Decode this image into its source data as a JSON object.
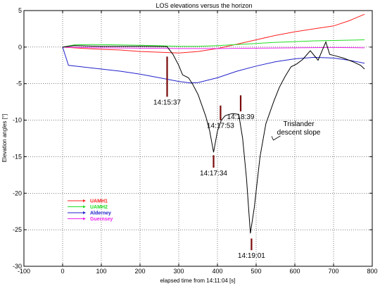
{
  "chart_data": {
    "type": "line",
    "title": "LOS elevations versus the horizon",
    "xlabel": "elapsed time from 14:11:04 [s]",
    "ylabel": "Elevation angles [°]",
    "xlim": [
      -100,
      800
    ],
    "ylim": [
      -30,
      5
    ],
    "xticks": [
      -100,
      0,
      100,
      200,
      300,
      400,
      500,
      600,
      700,
      800
    ],
    "yticks": [
      -30,
      -25,
      -20,
      -15,
      -10,
      -5,
      0,
      5
    ],
    "grid": true,
    "legend_position": "lower-left",
    "series": [
      {
        "name": "UAMH1",
        "color": "#ff2020",
        "points": [
          [
            0,
            0
          ],
          [
            30,
            -0.1
          ],
          [
            60,
            -0.2
          ],
          [
            100,
            -0.3
          ],
          [
            150,
            -0.4
          ],
          [
            200,
            -0.6
          ],
          [
            250,
            -0.7
          ],
          [
            300,
            -0.8
          ],
          [
            350,
            -0.6
          ],
          [
            400,
            -0.2
          ],
          [
            450,
            0.4
          ],
          [
            500,
            1.0
          ],
          [
            550,
            1.6
          ],
          [
            600,
            2.1
          ],
          [
            650,
            2.5
          ],
          [
            700,
            2.9
          ],
          [
            740,
            3.6
          ],
          [
            780,
            4.5
          ]
        ]
      },
      {
        "name": "UAMH2",
        "color": "#22dd22",
        "points": [
          [
            0,
            0
          ],
          [
            30,
            0.3
          ],
          [
            80,
            0.35
          ],
          [
            150,
            0.3
          ],
          [
            200,
            0.25
          ],
          [
            250,
            0.2
          ],
          [
            270,
            0.15
          ],
          [
            300,
            0.1
          ],
          [
            350,
            0.1
          ],
          [
            400,
            0.2
          ],
          [
            450,
            0.35
          ],
          [
            500,
            0.5
          ],
          [
            550,
            0.65
          ],
          [
            600,
            0.75
          ],
          [
            650,
            0.85
          ],
          [
            700,
            0.9
          ],
          [
            780,
            1.0
          ]
        ]
      },
      {
        "name": "Alderney",
        "color": "#2222cc",
        "points": [
          [
            0,
            0
          ],
          [
            15,
            -2.5
          ],
          [
            50,
            -2.7
          ],
          [
            100,
            -3.0
          ],
          [
            150,
            -3.3
          ],
          [
            200,
            -3.7
          ],
          [
            250,
            -4.2
          ],
          [
            300,
            -4.7
          ],
          [
            330,
            -4.9
          ],
          [
            350,
            -4.85
          ],
          [
            400,
            -4.2
          ],
          [
            450,
            -3.3
          ],
          [
            500,
            -2.6
          ],
          [
            550,
            -2.0
          ],
          [
            600,
            -1.6
          ],
          [
            650,
            -1.4
          ],
          [
            700,
            -1.5
          ],
          [
            740,
            -1.8
          ],
          [
            780,
            -2.2
          ]
        ]
      },
      {
        "name": "Guernsey",
        "color": "#ee22ee",
        "points": [
          [
            0,
            0
          ],
          [
            100,
            -0.1
          ],
          [
            200,
            -0.15
          ],
          [
            300,
            -0.2
          ],
          [
            400,
            -0.2
          ],
          [
            500,
            -0.15
          ],
          [
            600,
            -0.1
          ],
          [
            700,
            -0.05
          ],
          [
            780,
            -0.1
          ]
        ]
      },
      {
        "name": "",
        "color": "#000000",
        "points": [
          [
            0,
            0
          ],
          [
            30,
            0.2
          ],
          [
            100,
            0.1
          ],
          [
            150,
            0.1
          ],
          [
            200,
            0.1
          ],
          [
            270,
            0.05
          ],
          [
            285,
            -1.0
          ],
          [
            300,
            -2.5
          ],
          [
            310,
            -3.8
          ],
          [
            325,
            -4.2
          ],
          [
            335,
            -5.0
          ],
          [
            350,
            -6.5
          ],
          [
            360,
            -8.0
          ],
          [
            370,
            -9.5
          ],
          [
            380,
            -11.5
          ],
          [
            390,
            -14.4
          ],
          [
            400,
            -11.5
          ],
          [
            410,
            -10.0
          ],
          [
            420,
            -9.4
          ],
          [
            430,
            -9.2
          ],
          [
            440,
            -9.1
          ],
          [
            455,
            -9.2
          ],
          [
            465,
            -12.5
          ],
          [
            475,
            -18.0
          ],
          [
            485,
            -25.5
          ],
          [
            495,
            -22.0
          ],
          [
            510,
            -15.0
          ],
          [
            525,
            -10.5
          ],
          [
            545,
            -7.5
          ],
          [
            560,
            -5.5
          ],
          [
            575,
            -4.0
          ],
          [
            590,
            -2.7
          ],
          [
            605,
            -2.3
          ],
          [
            620,
            -1.7
          ],
          [
            640,
            -0.5
          ],
          [
            660,
            -1.8
          ],
          [
            680,
            0.7
          ],
          [
            690,
            -1.0
          ],
          [
            705,
            -1.2
          ],
          [
            725,
            -1.5
          ],
          [
            750,
            -2.0
          ],
          [
            770,
            -2.5
          ],
          [
            780,
            -3.0
          ]
        ]
      }
    ],
    "markers": [
      {
        "label": "14:15:37",
        "x": 270,
        "y_top": -1.3,
        "y_bottom": -6.8
      },
      {
        "label": "14:17:53",
        "x": 408,
        "y_top": -8.0,
        "y_bottom": -10.0
      },
      {
        "label": "14:18:39",
        "x": 460,
        "y_top": -6.6,
        "y_bottom": -8.8
      },
      {
        "label": "14:17:34",
        "x": 390,
        "y_top": -14.8,
        "y_bottom": -16.5
      },
      {
        "label": "14:19:01",
        "x": 488,
        "y_top": -26.2,
        "y_bottom": -27.8
      }
    ],
    "annotations": [
      {
        "text_lines": [
          "Trislander",
          "descent slope"
        ],
        "x": 610,
        "y": -10.8,
        "points_to": [
          540,
          -12.2
        ]
      }
    ]
  }
}
